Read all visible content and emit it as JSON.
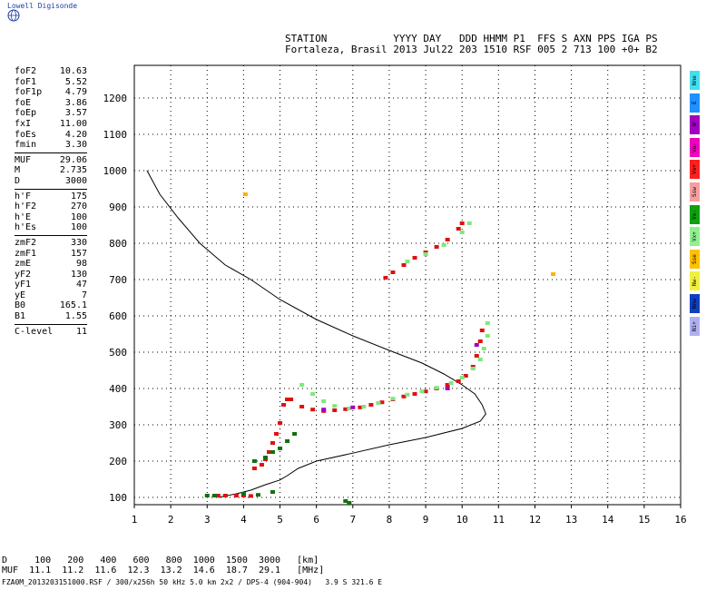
{
  "app": {
    "logo_text": "Lowell Digisonde"
  },
  "header": {
    "labels": "STATION           YYYY DAY   DDD HHMM P1  FFS S AXN PPS IGA PS",
    "values": "Fortaleza, Brasil 2013 Jul22 203 1510 RSF 005 2 713 100 +0+ B2"
  },
  "params": [
    [
      "foF2",
      "10.63"
    ],
    [
      "foF1",
      "5.52"
    ],
    [
      "foF1p",
      "4.79"
    ],
    [
      "foE",
      "3.86"
    ],
    [
      "foEp",
      "3.57"
    ],
    [
      "fxI",
      "11.00"
    ],
    [
      "foEs",
      "4.20"
    ],
    [
      "fmin",
      "3.30"
    ],
    "sep",
    [
      "MUF",
      "29.06"
    ],
    [
      "M",
      "2.735"
    ],
    [
      "D",
      "3000"
    ],
    "sep",
    [
      "h'F",
      "175"
    ],
    [
      "h'F2",
      "270"
    ],
    [
      "h'E",
      "100"
    ],
    [
      "h'Es",
      "100"
    ],
    "sep",
    [
      "zmF2",
      "330"
    ],
    [
      "zmF1",
      "157"
    ],
    [
      "zmE",
      "98"
    ],
    [
      "yF2",
      "130"
    ],
    [
      "yF1",
      "47"
    ],
    [
      "yE",
      "7"
    ],
    [
      "B0",
      "165.1"
    ],
    [
      "B1",
      "1.55"
    ],
    "sep",
    [
      "C-level",
      "11"
    ]
  ],
  "legend": [
    {
      "label": "Nne",
      "color": "#40e0f0"
    },
    {
      "label": "E",
      "color": "#1e90ff"
    },
    {
      "label": "W",
      "color": "#a000c0"
    },
    {
      "label": "Vo-",
      "color": "#f000c0"
    },
    {
      "label": "Vo+",
      "color": "#ff2020"
    },
    {
      "label": "Ssw",
      "color": "#f4a0a0"
    },
    {
      "label": "Vx-",
      "color": "#10a010"
    },
    {
      "label": "Vx+",
      "color": "#90f090"
    },
    {
      "label": "Sse",
      "color": "#ffc000"
    },
    {
      "label": "Nw-",
      "color": "#f0f040"
    },
    {
      "label": "Nnw",
      "color": "#1040c0"
    },
    {
      "label": "Ni+",
      "color": "#b0b0f0"
    }
  ],
  "bottom": {
    "d_row": "D     100   200   400   600   800  1000  1500  3000   [km]",
    "muf_row": "MUF  11.1  11.2  11.6  12.3  13.2  14.6  18.7  29.1   [MHz]",
    "footer": "FZA0M_2013203151000.RSF / 300/x256h 50 kHz 5.0 km 2x2 / DPS-4 (904-904)   3.9 S 321.6 E"
  },
  "chart_data": {
    "type": "scatter",
    "xlim": [
      1,
      16
    ],
    "ylim": [
      80,
      1290
    ],
    "xticks": [
      1,
      2,
      3,
      4,
      5,
      6,
      7,
      8,
      9,
      10,
      11,
      12,
      13,
      14,
      15,
      16
    ],
    "yticks": [
      100,
      200,
      300,
      400,
      500,
      600,
      700,
      800,
      900,
      1000,
      1100,
      1200
    ],
    "grid": true,
    "profile": [
      [
        1.35,
        1000
      ],
      [
        1.7,
        935
      ],
      [
        2.2,
        870
      ],
      [
        2.8,
        800
      ],
      [
        3.5,
        740
      ],
      [
        4.2,
        700
      ],
      [
        5.0,
        645
      ],
      [
        6.0,
        590
      ],
      [
        7.0,
        545
      ],
      [
        8.0,
        505
      ],
      [
        8.9,
        470
      ],
      [
        9.5,
        440
      ],
      [
        10.0,
        410
      ],
      [
        10.35,
        385
      ],
      [
        10.55,
        355
      ],
      [
        10.65,
        330
      ],
      [
        10.5,
        310
      ],
      [
        10.0,
        290
      ],
      [
        9.0,
        265
      ],
      [
        8.0,
        245
      ],
      [
        7.0,
        222
      ],
      [
        6.0,
        200
      ],
      [
        5.5,
        180
      ],
      [
        5.2,
        160
      ],
      [
        5.0,
        148
      ],
      [
        4.6,
        135
      ],
      [
        4.2,
        120
      ],
      [
        3.8,
        110
      ],
      [
        3.3,
        100
      ]
    ],
    "traces": [
      {
        "series": "Vo+",
        "color": "#e01010",
        "points": [
          [
            3.3,
            105
          ],
          [
            3.5,
            105
          ],
          [
            3.8,
            105
          ],
          [
            4.0,
            105
          ],
          [
            4.2,
            104
          ],
          [
            4.3,
            180
          ],
          [
            4.5,
            190
          ],
          [
            4.6,
            205
          ],
          [
            4.7,
            225
          ],
          [
            4.8,
            250
          ],
          [
            4.9,
            275
          ],
          [
            5.0,
            305
          ],
          [
            5.1,
            355
          ],
          [
            5.2,
            370
          ],
          [
            5.3,
            370
          ],
          [
            5.6,
            350
          ],
          [
            5.9,
            342
          ],
          [
            6.2,
            338
          ],
          [
            6.5,
            340
          ],
          [
            6.8,
            343
          ],
          [
            7.2,
            348
          ],
          [
            7.5,
            355
          ],
          [
            7.8,
            362
          ],
          [
            8.1,
            370
          ],
          [
            8.4,
            378
          ],
          [
            8.7,
            385
          ],
          [
            9.0,
            392
          ],
          [
            9.3,
            400
          ],
          [
            9.6,
            410
          ],
          [
            9.9,
            420
          ],
          [
            10.1,
            435
          ],
          [
            10.3,
            460
          ],
          [
            10.4,
            490
          ],
          [
            10.5,
            530
          ],
          [
            10.55,
            560
          ],
          [
            7.9,
            705
          ],
          [
            8.1,
            720
          ],
          [
            8.4,
            740
          ],
          [
            8.7,
            760
          ],
          [
            9.0,
            775
          ],
          [
            9.3,
            790
          ],
          [
            9.6,
            810
          ],
          [
            9.9,
            840
          ],
          [
            10.0,
            855
          ]
        ]
      },
      {
        "series": "Vx+",
        "color": "#7de87d",
        "points": [
          [
            5.6,
            410
          ],
          [
            5.9,
            385
          ],
          [
            6.2,
            365
          ],
          [
            6.5,
            352
          ],
          [
            6.9,
            345
          ],
          [
            7.3,
            350
          ],
          [
            7.7,
            360
          ],
          [
            8.1,
            372
          ],
          [
            8.5,
            383
          ],
          [
            8.9,
            392
          ],
          [
            9.3,
            402
          ],
          [
            9.7,
            415
          ],
          [
            10.0,
            430
          ],
          [
            10.3,
            455
          ],
          [
            10.5,
            480
          ],
          [
            10.6,
            510
          ],
          [
            10.7,
            545
          ],
          [
            10.7,
            580
          ],
          [
            8.5,
            750
          ],
          [
            9.0,
            770
          ],
          [
            9.5,
            795
          ],
          [
            10.0,
            830
          ],
          [
            10.2,
            855
          ]
        ]
      },
      {
        "series": "Vx-",
        "color": "#107010",
        "points": [
          [
            4.3,
            200
          ],
          [
            4.6,
            210
          ],
          [
            4.8,
            225
          ],
          [
            5.0,
            235
          ],
          [
            5.2,
            255
          ],
          [
            5.4,
            275
          ],
          [
            3.0,
            105
          ],
          [
            3.2,
            105
          ],
          [
            4.0,
            110
          ],
          [
            4.4,
            107
          ],
          [
            4.8,
            115
          ],
          [
            6.8,
            90
          ],
          [
            6.9,
            85
          ]
        ]
      },
      {
        "series": "W",
        "color": "#a000c0",
        "points": [
          [
            6.2,
            342
          ],
          [
            7.0,
            348
          ],
          [
            9.6,
            400
          ],
          [
            10.4,
            520
          ]
        ]
      },
      {
        "series": "Sse",
        "color": "#ffb000",
        "points": [
          [
            12.5,
            715
          ],
          [
            4.05,
            935
          ]
        ]
      }
    ]
  }
}
